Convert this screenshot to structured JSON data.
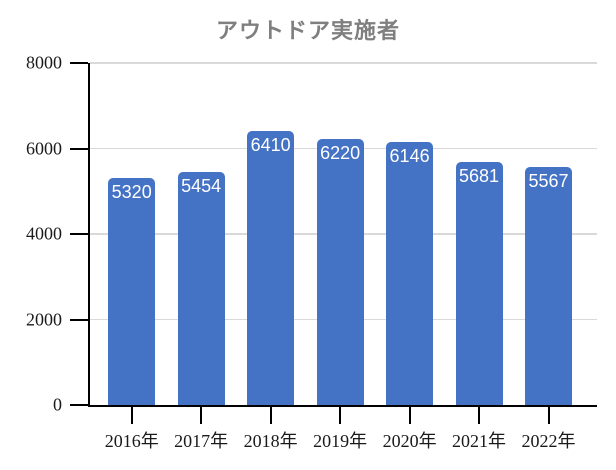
{
  "chart_data": {
    "type": "bar",
    "title": "アウトドア実施者",
    "categories": [
      "2016年",
      "2017年",
      "2018年",
      "2019年",
      "2020年",
      "2021年",
      "2022年"
    ],
    "values": [
      5320,
      5454,
      6410,
      6220,
      6146,
      5681,
      5567
    ],
    "xlabel": "",
    "ylabel": "",
    "ylim": [
      0,
      8000
    ],
    "yticks": [
      0,
      2000,
      4000,
      6000,
      8000
    ],
    "grid": true,
    "legend_position": "none",
    "bar_color": "#4472c4",
    "value_label_color": "#ffffff",
    "gridline_color": "#d9d9d9",
    "axis_color": "#000000",
    "title_color": "#7f7f7f"
  }
}
